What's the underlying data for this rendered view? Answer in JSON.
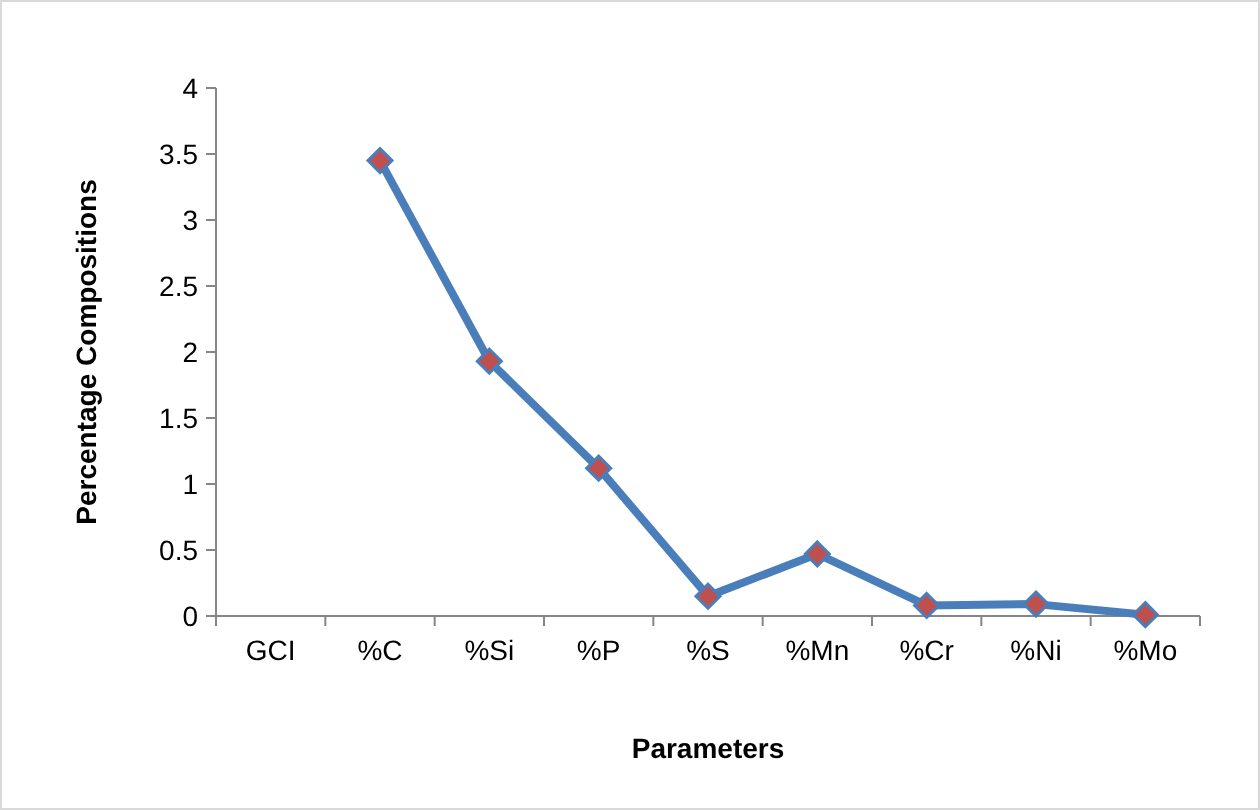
{
  "chart_data": {
    "type": "line",
    "xlabel": "Parameters",
    "ylabel": "Percentage Compositions",
    "categories": [
      "GCI",
      "%C",
      "%Si",
      "%P",
      "%S",
      "%Mn",
      "%Cr",
      "%Ni",
      "%Mo"
    ],
    "series": [
      {
        "color": "#4a7ebb",
        "values": [
          null,
          3.45,
          1.93,
          1.12,
          0.15,
          0.47,
          0.08,
          0.09,
          0.01
        ]
      }
    ],
    "ylim": [
      0,
      4
    ],
    "yticks": [
      0,
      0.5,
      1,
      1.5,
      2,
      2.5,
      3,
      3.5,
      4
    ],
    "marker": "diamond",
    "line_style": "solid",
    "grid": false
  }
}
